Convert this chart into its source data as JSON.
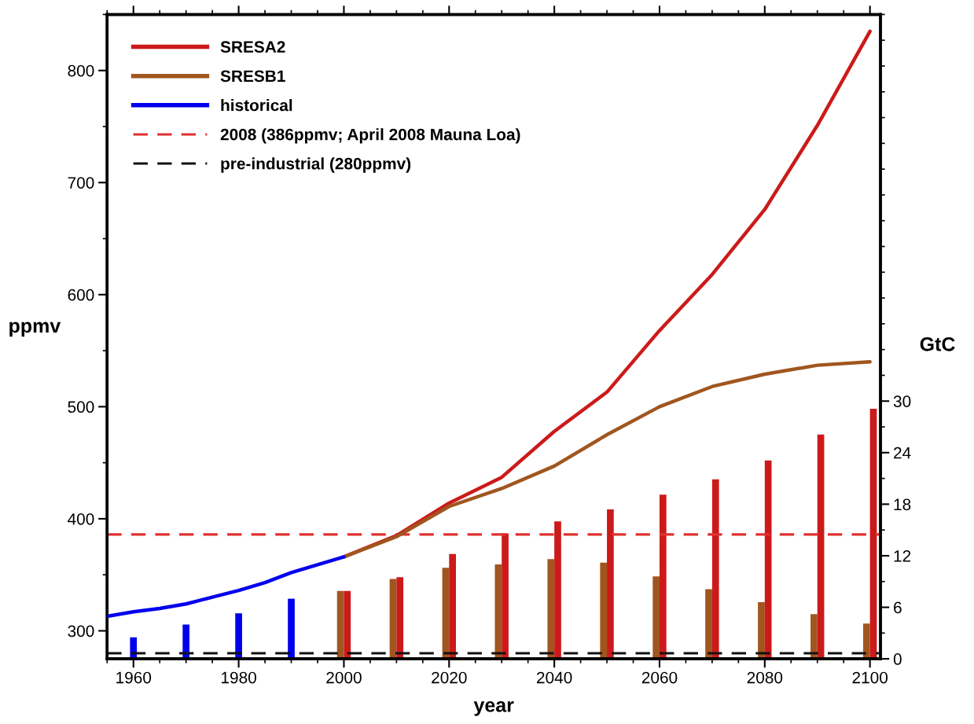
{
  "chart_data": {
    "type": "line",
    "xlabel": "year",
    "ylabel": "ppmv",
    "y2label": "GtC",
    "xlim": [
      1955,
      2102
    ],
    "xticks": [
      1960,
      1980,
      2000,
      2020,
      2040,
      2060,
      2080,
      2100
    ],
    "ylim": [
      275,
      850
    ],
    "yticks": [
      300,
      400,
      500,
      600,
      700,
      800
    ],
    "y2lim": [
      0,
      75
    ],
    "y2ticks": [
      0,
      6,
      12,
      18,
      24,
      30
    ],
    "grid": false,
    "legend": "top left",
    "marker": "none",
    "line_style": "solid",
    "series": [
      {
        "name": "SRESA2",
        "color": "#cc1a1a",
        "x": [
          2000,
          2010,
          2020,
          2030,
          2040,
          2050,
          2060,
          2070,
          2080,
          2090,
          2100
        ],
        "values": [
          366,
          385,
          414,
          437,
          478,
          513,
          568,
          618,
          676,
          751,
          835
        ]
      },
      {
        "name": "SRESB1",
        "color": "#a0561e",
        "x": [
          2000,
          2010,
          2020,
          2030,
          2040,
          2050,
          2060,
          2070,
          2080,
          2090,
          2100
        ],
        "values": [
          366,
          384,
          411,
          427,
          447,
          475,
          500,
          518,
          529,
          537,
          540
        ]
      },
      {
        "name": "historical",
        "color": "#0000ee",
        "x": [
          1955,
          1960,
          1965,
          1970,
          1975,
          1980,
          1985,
          1990,
          1995,
          2000
        ],
        "values": [
          313,
          317,
          320,
          324,
          330,
          336,
          343,
          352,
          359,
          366
        ]
      },
      {
        "type": "bar",
        "axis": "y2",
        "color": "#0000ee",
        "x": [
          1960,
          1970,
          1980,
          1990
        ],
        "values": [
          2.5,
          4.0,
          5.3,
          7.0
        ]
      },
      {
        "type": "bar",
        "axis": "y2",
        "color": "#a0561e",
        "x": [
          2000,
          2010,
          2020,
          2030,
          2040,
          2050,
          2060,
          2070,
          2080,
          2090,
          2100
        ],
        "values": [
          7.9,
          9.3,
          10.6,
          11.0,
          11.6,
          11.2,
          9.6,
          8.1,
          6.6,
          5.2,
          4.1
        ]
      },
      {
        "type": "bar",
        "axis": "y2",
        "color": "#cc1a1a",
        "x": [
          2000,
          2010,
          2020,
          2030,
          2040,
          2050,
          2060,
          2070,
          2080,
          2090,
          2100
        ],
        "values": [
          7.9,
          9.5,
          12.2,
          14.6,
          16.0,
          17.4,
          19.1,
          20.9,
          23.1,
          26.1,
          29.1
        ]
      }
    ],
    "ref_lines": [
      {
        "axis": "y",
        "value": 386,
        "label": "2008 (386ppmv; April 2008 Mauna Loa)",
        "color": "#e03030",
        "line_style": "dashed"
      },
      {
        "axis": "y",
        "value": 280,
        "label": "pre-industrial (280ppmv)",
        "color": "#111111",
        "line_style": "dashed"
      }
    ]
  }
}
